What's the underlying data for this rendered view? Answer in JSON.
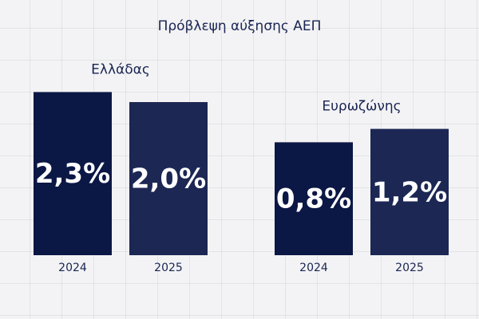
{
  "chart_data": {
    "type": "bar",
    "title": "Πρόβλεψη αύξησης ΑΕΠ",
    "categories": [
      "2024",
      "2025"
    ],
    "colors": [
      "#0b1744",
      "#1c2754"
    ],
    "series": [
      {
        "name": "Ελλάδας",
        "values": [
          2.3,
          2.0
        ],
        "value_labels": [
          "2,3%",
          "2,0%"
        ]
      },
      {
        "name": "Ευρωζώνης",
        "values": [
          0.8,
          1.2
        ],
        "value_labels": [
          "0,8%",
          "1,2%"
        ]
      }
    ]
  }
}
